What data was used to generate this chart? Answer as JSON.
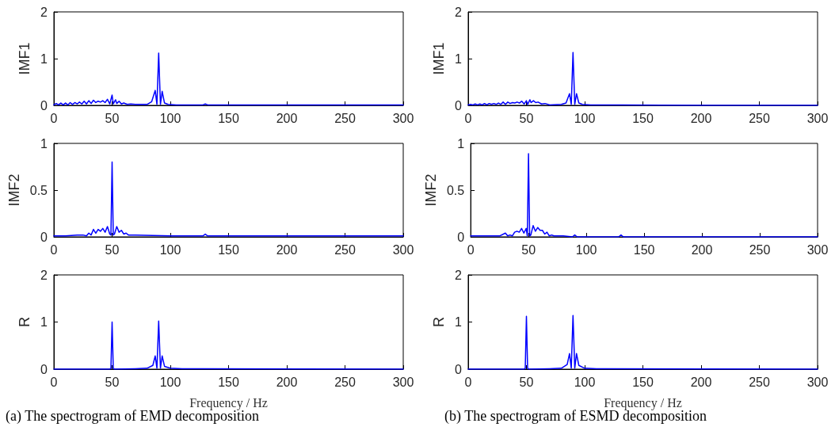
{
  "chart_data": [
    {
      "type": "line",
      "ylabel": "IMF1",
      "xlim": [
        0,
        300
      ],
      "xticks": [
        0,
        50,
        100,
        150,
        200,
        250,
        300
      ],
      "ylim": [
        0,
        2
      ],
      "yticks": [
        0,
        1,
        2
      ],
      "grid": false,
      "marker": "none",
      "line_style": "solid",
      "series": [
        {
          "color": "#0000ff",
          "x": [
            0,
            2,
            4,
            6,
            8,
            10,
            12,
            14,
            16,
            18,
            20,
            22,
            24,
            26,
            28,
            30,
            32,
            34,
            36,
            38,
            40,
            42,
            44,
            46,
            48,
            50,
            51,
            53,
            54,
            56,
            58,
            60,
            63,
            66,
            70,
            80,
            84,
            87,
            88.5,
            90,
            91.5,
            93,
            95,
            98,
            105,
            128,
            130,
            132,
            200,
            300
          ],
          "values": [
            0.01,
            0.04,
            0.01,
            0.05,
            0.01,
            0.05,
            0.01,
            0.06,
            0.02,
            0.06,
            0.03,
            0.07,
            0.03,
            0.09,
            0.03,
            0.1,
            0.04,
            0.11,
            0.06,
            0.09,
            0.07,
            0.1,
            0.06,
            0.13,
            0.03,
            0.22,
            0.03,
            0.12,
            0.04,
            0.09,
            0.03,
            0.05,
            0.02,
            0.03,
            0.02,
            0.02,
            0.08,
            0.32,
            0.02,
            1.12,
            0.02,
            0.3,
            0.05,
            0.02,
            0.01,
            0.01,
            0.03,
            0.01,
            0.01,
            0.01
          ]
        }
      ]
    },
    {
      "type": "line",
      "ylabel": "IMF1",
      "xlim": [
        0,
        300
      ],
      "xticks": [
        0,
        50,
        100,
        150,
        200,
        250,
        300
      ],
      "ylim": [
        0,
        2
      ],
      "yticks": [
        0,
        1,
        2
      ],
      "grid": false,
      "marker": "none",
      "line_style": "solid",
      "series": [
        {
          "color": "#0000ff",
          "x": [
            0,
            2,
            4,
            6,
            8,
            10,
            12,
            14,
            16,
            18,
            20,
            22,
            24,
            26,
            28,
            30,
            32,
            34,
            36,
            38,
            40,
            42,
            44,
            46,
            48,
            50,
            51,
            53,
            54,
            56,
            58,
            60,
            63,
            66,
            70,
            80,
            84,
            87,
            88.5,
            90,
            91.5,
            93,
            95,
            98,
            105,
            128,
            130,
            132,
            200,
            300
          ],
          "values": [
            0.01,
            0.02,
            0.01,
            0.03,
            0.01,
            0.03,
            0.01,
            0.04,
            0.01,
            0.04,
            0.02,
            0.04,
            0.02,
            0.05,
            0.02,
            0.07,
            0.02,
            0.07,
            0.04,
            0.06,
            0.05,
            0.07,
            0.05,
            0.09,
            0.03,
            0.1,
            0.02,
            0.12,
            0.06,
            0.1,
            0.06,
            0.07,
            0.03,
            0.04,
            0.01,
            0.02,
            0.05,
            0.25,
            0.02,
            1.13,
            0.02,
            0.25,
            0.05,
            0.02,
            0.01,
            0.01,
            0.01,
            0.01,
            0,
            0
          ]
        }
      ]
    },
    {
      "type": "line",
      "ylabel": "IMF2",
      "xlim": [
        0,
        300
      ],
      "xticks": [
        0,
        50,
        100,
        150,
        200,
        250,
        300
      ],
      "ylim": [
        0,
        1
      ],
      "yticks": [
        0,
        0.5,
        1
      ],
      "grid": false,
      "marker": "none",
      "line_style": "solid",
      "series": [
        {
          "color": "#0000ff",
          "x": [
            0,
            10,
            20,
            25,
            28,
            30,
            32,
            34,
            36,
            38,
            40,
            42,
            44,
            46,
            48,
            49,
            50,
            51,
            52,
            54,
            56,
            58,
            60,
            62,
            64,
            66,
            70,
            100,
            128,
            130,
            132,
            200,
            300
          ],
          "values": [
            0.01,
            0.01,
            0.02,
            0.02,
            0.01,
            0.04,
            0.02,
            0.08,
            0.04,
            0.08,
            0.06,
            0.09,
            0.05,
            0.11,
            0.03,
            0.02,
            0.8,
            0.02,
            0.03,
            0.11,
            0.05,
            0.07,
            0.03,
            0.04,
            0.02,
            0.02,
            0.02,
            0.01,
            0.01,
            0.03,
            0.01,
            0.01,
            0.01
          ]
        }
      ]
    },
    {
      "type": "line",
      "ylabel": "IMF2",
      "xlim": [
        0,
        300
      ],
      "xticks": [
        0,
        50,
        100,
        150,
        200,
        250,
        300
      ],
      "ylim": [
        0,
        1
      ],
      "yticks": [
        0,
        0.5,
        1
      ],
      "grid": false,
      "marker": "none",
      "line_style": "solid",
      "series": [
        {
          "color": "#0000ff",
          "x": [
            0,
            10,
            20,
            25,
            30,
            32,
            34,
            36,
            38,
            40,
            42,
            44,
            46,
            48,
            49,
            50,
            51,
            52,
            54,
            56,
            58,
            60,
            62,
            64,
            66,
            68,
            70,
            72,
            80,
            88,
            90,
            92,
            128,
            130,
            132,
            200,
            300
          ],
          "values": [
            0.01,
            0.01,
            0.01,
            0.01,
            0.04,
            0.01,
            0.02,
            0.01,
            0.05,
            0.06,
            0.05,
            0.09,
            0.04,
            0.09,
            0.01,
            0.89,
            0.01,
            0.02,
            0.12,
            0.06,
            0.1,
            0.07,
            0.07,
            0.03,
            0.05,
            0.01,
            0.02,
            0.01,
            0.01,
            0,
            0.02,
            0,
            0,
            0.02,
            0,
            0,
            0
          ]
        }
      ]
    },
    {
      "type": "line",
      "ylabel": "R",
      "xlabel": "Frequency / Hz",
      "annotations": [
        "(a) The spectrogram of EMD decomposition"
      ],
      "xlim": [
        0,
        300
      ],
      "xticks": [
        0,
        50,
        100,
        150,
        200,
        250,
        300
      ],
      "ylim": [
        0,
        2
      ],
      "yticks": [
        0,
        1,
        2
      ],
      "grid": false,
      "marker": "none",
      "line_style": "solid",
      "series": [
        {
          "color": "#0000ff",
          "x": [
            0,
            48,
            49,
            50,
            51,
            52,
            70,
            80,
            85,
            87,
            88.5,
            90,
            91.5,
            93,
            95,
            100,
            110,
            300
          ],
          "values": [
            0,
            0,
            0.02,
            1.0,
            0.02,
            0,
            0.01,
            0.02,
            0.08,
            0.28,
            0.02,
            1.02,
            0.02,
            0.28,
            0.06,
            0.02,
            0.01,
            0
          ]
        }
      ]
    },
    {
      "type": "line",
      "ylabel": "R",
      "xlabel": "Frequency / Hz",
      "annotations": [
        "(b) The spectrogram of ESMD decomposition"
      ],
      "xlim": [
        0,
        300
      ],
      "xticks": [
        0,
        50,
        100,
        150,
        200,
        250,
        300
      ],
      "ylim": [
        0,
        2
      ],
      "yticks": [
        0,
        1,
        2
      ],
      "grid": false,
      "marker": "none",
      "line_style": "solid",
      "series": [
        {
          "color": "#0000ff",
          "x": [
            0,
            48,
            49,
            50,
            51,
            52,
            70,
            80,
            85,
            87,
            88.5,
            90,
            91.5,
            93,
            95,
            100,
            110,
            300
          ],
          "values": [
            0,
            0,
            0.02,
            1.12,
            0.02,
            0,
            0.01,
            0.02,
            0.1,
            0.33,
            0.02,
            1.14,
            0.02,
            0.33,
            0.08,
            0.02,
            0.01,
            0
          ]
        }
      ]
    }
  ]
}
